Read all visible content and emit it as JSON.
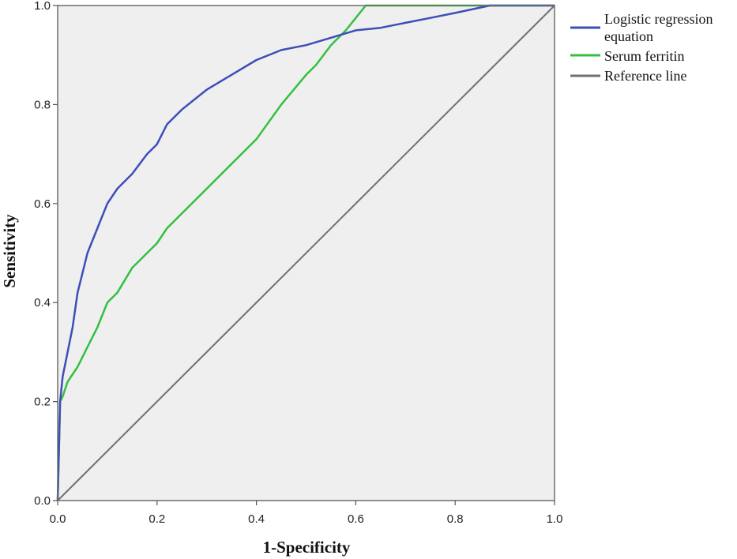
{
  "chart_data": {
    "type": "line",
    "title": "",
    "xlabel": "1-Specificity",
    "ylabel": "Sensitivity",
    "xlim": [
      0,
      1
    ],
    "ylim": [
      0,
      1
    ],
    "xticks": [
      "0.0",
      "0.2",
      "0.4",
      "0.6",
      "0.8",
      "1.0"
    ],
    "yticks": [
      "0.0",
      "0.2",
      "0.4",
      "0.6",
      "0.8",
      "1.0"
    ],
    "grid": false,
    "legend_position": "right",
    "plot_background": "#efefef",
    "series": [
      {
        "name": "Logistic regression equation",
        "color": "#3d4eb8",
        "x": [
          0,
          0.005,
          0.01,
          0.02,
          0.03,
          0.04,
          0.05,
          0.06,
          0.08,
          0.1,
          0.12,
          0.15,
          0.18,
          0.2,
          0.22,
          0.25,
          0.3,
          0.35,
          0.4,
          0.45,
          0.5,
          0.55,
          0.6,
          0.65,
          0.7,
          0.75,
          0.8,
          0.87,
          0.9,
          1.0
        ],
        "y": [
          0,
          0.2,
          0.25,
          0.3,
          0.35,
          0.42,
          0.46,
          0.5,
          0.55,
          0.6,
          0.63,
          0.66,
          0.7,
          0.72,
          0.76,
          0.79,
          0.83,
          0.86,
          0.89,
          0.91,
          0.92,
          0.935,
          0.95,
          0.955,
          0.965,
          0.975,
          0.985,
          1.0,
          1.0,
          1.0
        ]
      },
      {
        "name": "Serum ferritin",
        "color": "#33c040",
        "x": [
          0,
          0.005,
          0.01,
          0.02,
          0.04,
          0.06,
          0.08,
          0.1,
          0.12,
          0.15,
          0.18,
          0.2,
          0.22,
          0.25,
          0.3,
          0.35,
          0.4,
          0.45,
          0.5,
          0.52,
          0.55,
          0.58,
          0.6,
          0.62,
          0.65,
          0.7,
          0.8,
          0.9,
          1.0
        ],
        "y": [
          0,
          0.2,
          0.21,
          0.24,
          0.27,
          0.31,
          0.35,
          0.4,
          0.42,
          0.47,
          0.5,
          0.52,
          0.55,
          0.58,
          0.63,
          0.68,
          0.73,
          0.8,
          0.86,
          0.88,
          0.92,
          0.95,
          0.975,
          1.0,
          1.0,
          1.0,
          1.0,
          1.0,
          1.0
        ]
      },
      {
        "name": "Reference line",
        "color": "#707070",
        "x": [
          0,
          1
        ],
        "y": [
          0,
          1
        ]
      }
    ],
    "legend": [
      "Logistic regression",
      "equation",
      "Serum ferritin",
      "Reference line"
    ]
  }
}
